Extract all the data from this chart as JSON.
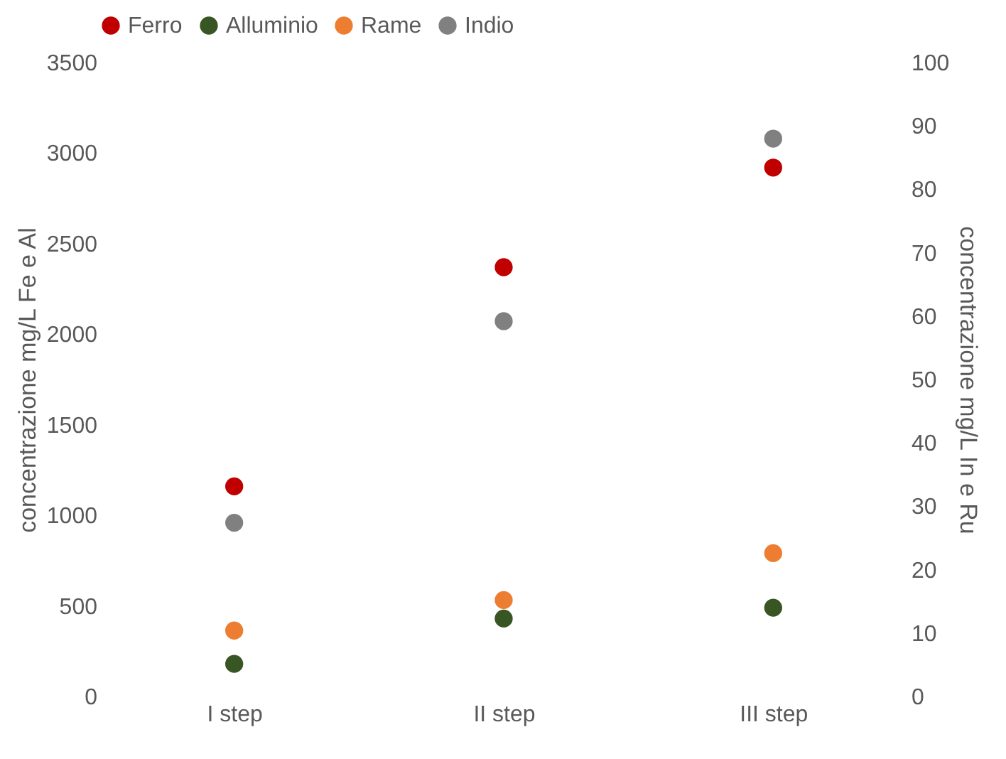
{
  "chart_data": {
    "type": "scatter",
    "categories": [
      "I step",
      "II step",
      "III step"
    ],
    "series": [
      {
        "name": "Ferro",
        "color": "#c00000",
        "values": [
          1160,
          2370,
          2920
        ]
      },
      {
        "name": "Alluminio",
        "color": "#375623",
        "values": [
          180,
          430,
          490
        ]
      },
      {
        "name": "Rame",
        "color": "#ed7d31",
        "values": [
          10.4,
          15.2,
          22.6
        ],
        "axis": "y2"
      },
      {
        "name": "Indio",
        "color": "#808080",
        "values": [
          27.4,
          59.2,
          88
        ],
        "axis": "y2"
      }
    ],
    "ylabel": "concentrazione mg/L Fe e Al",
    "y2label": "concentrazione mg/L In e Ru",
    "ylim": [
      0,
      3500
    ],
    "yticks": [
      0,
      500,
      1000,
      1500,
      2000,
      2500,
      3000,
      3500
    ],
    "y2lim": [
      0,
      100
    ],
    "y2ticks": [
      0,
      10,
      20,
      30,
      40,
      50,
      60,
      70,
      80,
      90,
      100
    ],
    "legend": "top",
    "grid": false,
    "marker": "circle"
  }
}
